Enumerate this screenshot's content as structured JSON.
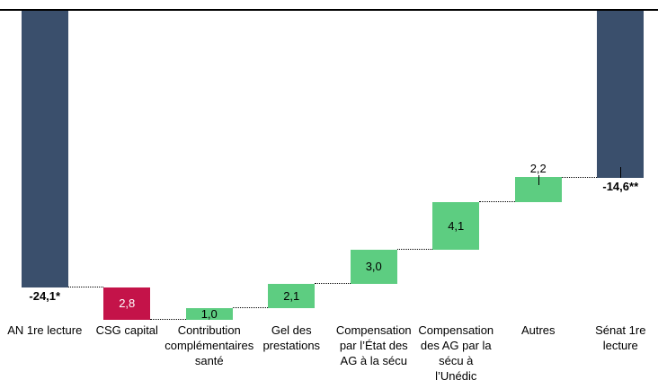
{
  "chart_data": {
    "type": "bar",
    "subtype": "waterfall",
    "title": "",
    "categories": [
      "AN 1re lecture",
      "CSG capital",
      "Contribution\ncomplémentaires\nsanté",
      "Gel des\nprestations",
      "Compensation\npar l’État des\nAG à la sécu",
      "Compensation\ndes AG par la\nsécu à\nl’Unédic",
      "Autres",
      "Sénat 1re\nlecture"
    ],
    "values": [
      -24.1,
      -2.8,
      1.0,
      2.1,
      3.0,
      4.1,
      2.2,
      -14.6
    ],
    "value_labels": [
      "-24,1*",
      "2,8",
      "1,0",
      "2,1",
      "3,0",
      "4,1",
      "2,2",
      "-14,6**"
    ],
    "bar_kinds": [
      "total",
      "negative",
      "positive",
      "positive",
      "positive",
      "positive",
      "positive",
      "total"
    ],
    "label_positions": [
      "below",
      "inside",
      "inside",
      "inside",
      "inside",
      "inside",
      "above",
      "below"
    ],
    "leader_tick": [
      false,
      false,
      false,
      false,
      false,
      false,
      true,
      true
    ],
    "value_label_colors": [
      "#000000",
      "#FFFFFF",
      "#000000",
      "#000000",
      "#000000",
      "#000000",
      "#000000",
      "#000000"
    ],
    "colors": {
      "total": "#3A4F6C",
      "negative": "#C41349",
      "positive": "#5DCD81",
      "connector": "#000000",
      "axis": "#000000"
    },
    "baseline_value": 0,
    "layout": {
      "zero_axis_at_top": true,
      "grid": false,
      "y_axis_visible": false,
      "legend": "none",
      "connectors_dotted": true
    }
  }
}
